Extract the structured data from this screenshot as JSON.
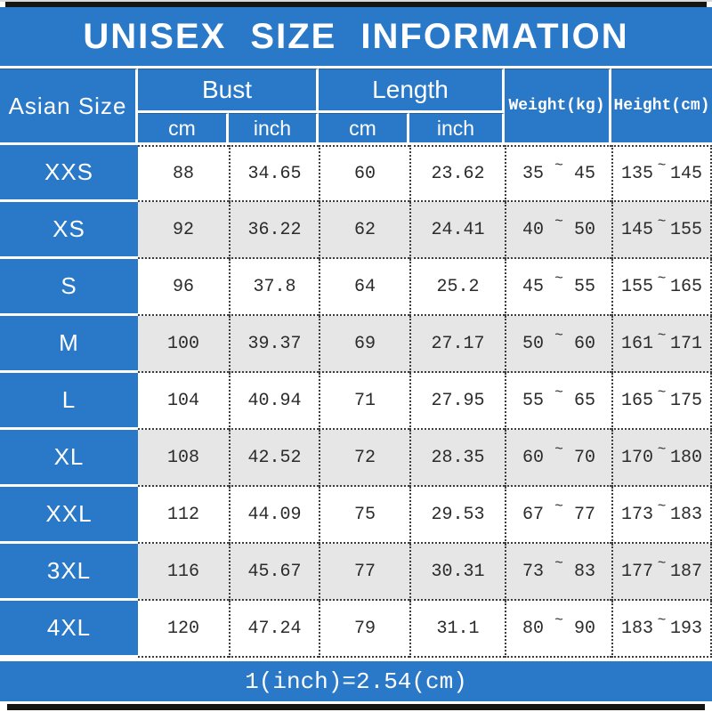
{
  "colors": {
    "accent_blue": "#2979C8",
    "alt_row_gray": "#E7E6E7",
    "bar_black": "#141414",
    "data_text": "#2B2B2B",
    "header_text": "#FFFFFF"
  },
  "chart_data": {
    "type": "table",
    "title": "UNISEX SIZE INFORMATION",
    "tilde": "~",
    "note": "1(inch)=2.54(cm)",
    "header": {
      "size_column": "Asian Size",
      "bust_group": "Bust",
      "length_group": "Length",
      "bust_cm": "cm",
      "bust_inch": "inch",
      "length_cm": "cm",
      "length_inch": "inch",
      "weight": "Weight(kg)",
      "height": "Height(cm)"
    },
    "rows": [
      {
        "size": "XXS",
        "bust_cm": "88",
        "bust_inch": "34.65",
        "length_cm": "60",
        "length_inch": "23.62",
        "weight_min": "35",
        "weight_max": "45",
        "height_min": "135",
        "height_max": "145"
      },
      {
        "size": "XS",
        "bust_cm": "92",
        "bust_inch": "36.22",
        "length_cm": "62",
        "length_inch": "24.41",
        "weight_min": "40",
        "weight_max": "50",
        "height_min": "145",
        "height_max": "155"
      },
      {
        "size": "S",
        "bust_cm": "96",
        "bust_inch": "37.8",
        "length_cm": "64",
        "length_inch": "25.2",
        "weight_min": "45",
        "weight_max": "55",
        "height_min": "155",
        "height_max": "165"
      },
      {
        "size": "M",
        "bust_cm": "100",
        "bust_inch": "39.37",
        "length_cm": "69",
        "length_inch": "27.17",
        "weight_min": "50",
        "weight_max": "60",
        "height_min": "161",
        "height_max": "171"
      },
      {
        "size": "L",
        "bust_cm": "104",
        "bust_inch": "40.94",
        "length_cm": "71",
        "length_inch": "27.95",
        "weight_min": "55",
        "weight_max": "65",
        "height_min": "165",
        "height_max": "175"
      },
      {
        "size": "XL",
        "bust_cm": "108",
        "bust_inch": "42.52",
        "length_cm": "72",
        "length_inch": "28.35",
        "weight_min": "60",
        "weight_max": "70",
        "height_min": "170",
        "height_max": "180"
      },
      {
        "size": "XXL",
        "bust_cm": "112",
        "bust_inch": "44.09",
        "length_cm": "75",
        "length_inch": "29.53",
        "weight_min": "67",
        "weight_max": "77",
        "height_min": "173",
        "height_max": "183"
      },
      {
        "size": "3XL",
        "bust_cm": "116",
        "bust_inch": "45.67",
        "length_cm": "77",
        "length_inch": "30.31",
        "weight_min": "73",
        "weight_max": "83",
        "height_min": "177",
        "height_max": "187"
      },
      {
        "size": "4XL",
        "bust_cm": "120",
        "bust_inch": "47.24",
        "length_cm": "79",
        "length_inch": "31.1",
        "weight_min": "80",
        "weight_max": "90",
        "height_min": "183",
        "height_max": "193"
      }
    ]
  }
}
